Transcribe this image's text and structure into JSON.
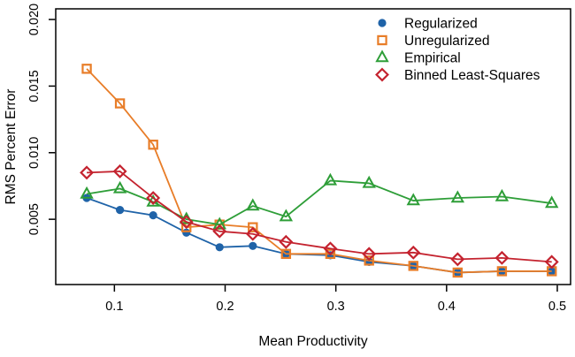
{
  "chart_data": {
    "type": "line",
    "title": "",
    "xlabel": "Mean Productivity",
    "ylabel": "RMS Percent Error",
    "xlim": [
      0.047,
      0.512
    ],
    "ylim": [
      0.0001,
      0.0208
    ],
    "x_ticks": [
      0.1,
      0.2,
      0.3,
      0.4,
      0.5
    ],
    "x_tick_labels": [
      "0.1",
      "0.2",
      "0.3",
      "0.4",
      "0.5"
    ],
    "y_ticks": [
      0.005,
      0.01,
      0.015,
      0.02
    ],
    "y_tick_labels": [
      "0.005",
      "0.010",
      "0.015",
      "0.020"
    ],
    "grid": false,
    "legend_position": "top-right",
    "x": [
      0.075,
      0.105,
      0.135,
      0.165,
      0.195,
      0.225,
      0.255,
      0.295,
      0.33,
      0.37,
      0.41,
      0.45,
      0.495
    ],
    "series": [
      {
        "name": "Regularized",
        "marker": "filled-circle",
        "color": "#1f63a8",
        "values": [
          0.0066,
          0.0057,
          0.0053,
          0.004,
          0.0029,
          0.003,
          0.0024,
          0.0023,
          0.0018,
          0.0015,
          0.001,
          0.0011,
          0.0011
        ]
      },
      {
        "name": "Unregularized",
        "marker": "open-square",
        "color": "#e87d28",
        "values": [
          0.0163,
          0.0137,
          0.0106,
          0.0044,
          0.0046,
          0.0044,
          0.0024,
          0.0024,
          0.0019,
          0.0015,
          0.001,
          0.0011,
          0.0011
        ]
      },
      {
        "name": "Empirical",
        "marker": "open-triangle",
        "color": "#2e9e38",
        "values": [
          0.0069,
          0.0073,
          0.0063,
          0.005,
          0.0046,
          0.006,
          0.0052,
          0.0079,
          0.0077,
          0.0064,
          0.0066,
          0.0067,
          0.0062
        ]
      },
      {
        "name": "Binned Least-Squares",
        "marker": "open-diamond",
        "color": "#c4232f",
        "values": [
          0.0085,
          0.0086,
          0.0066,
          0.0048,
          0.0041,
          0.0039,
          0.0033,
          0.0028,
          0.0024,
          0.0025,
          0.002,
          0.0021,
          0.0018
        ]
      }
    ]
  }
}
